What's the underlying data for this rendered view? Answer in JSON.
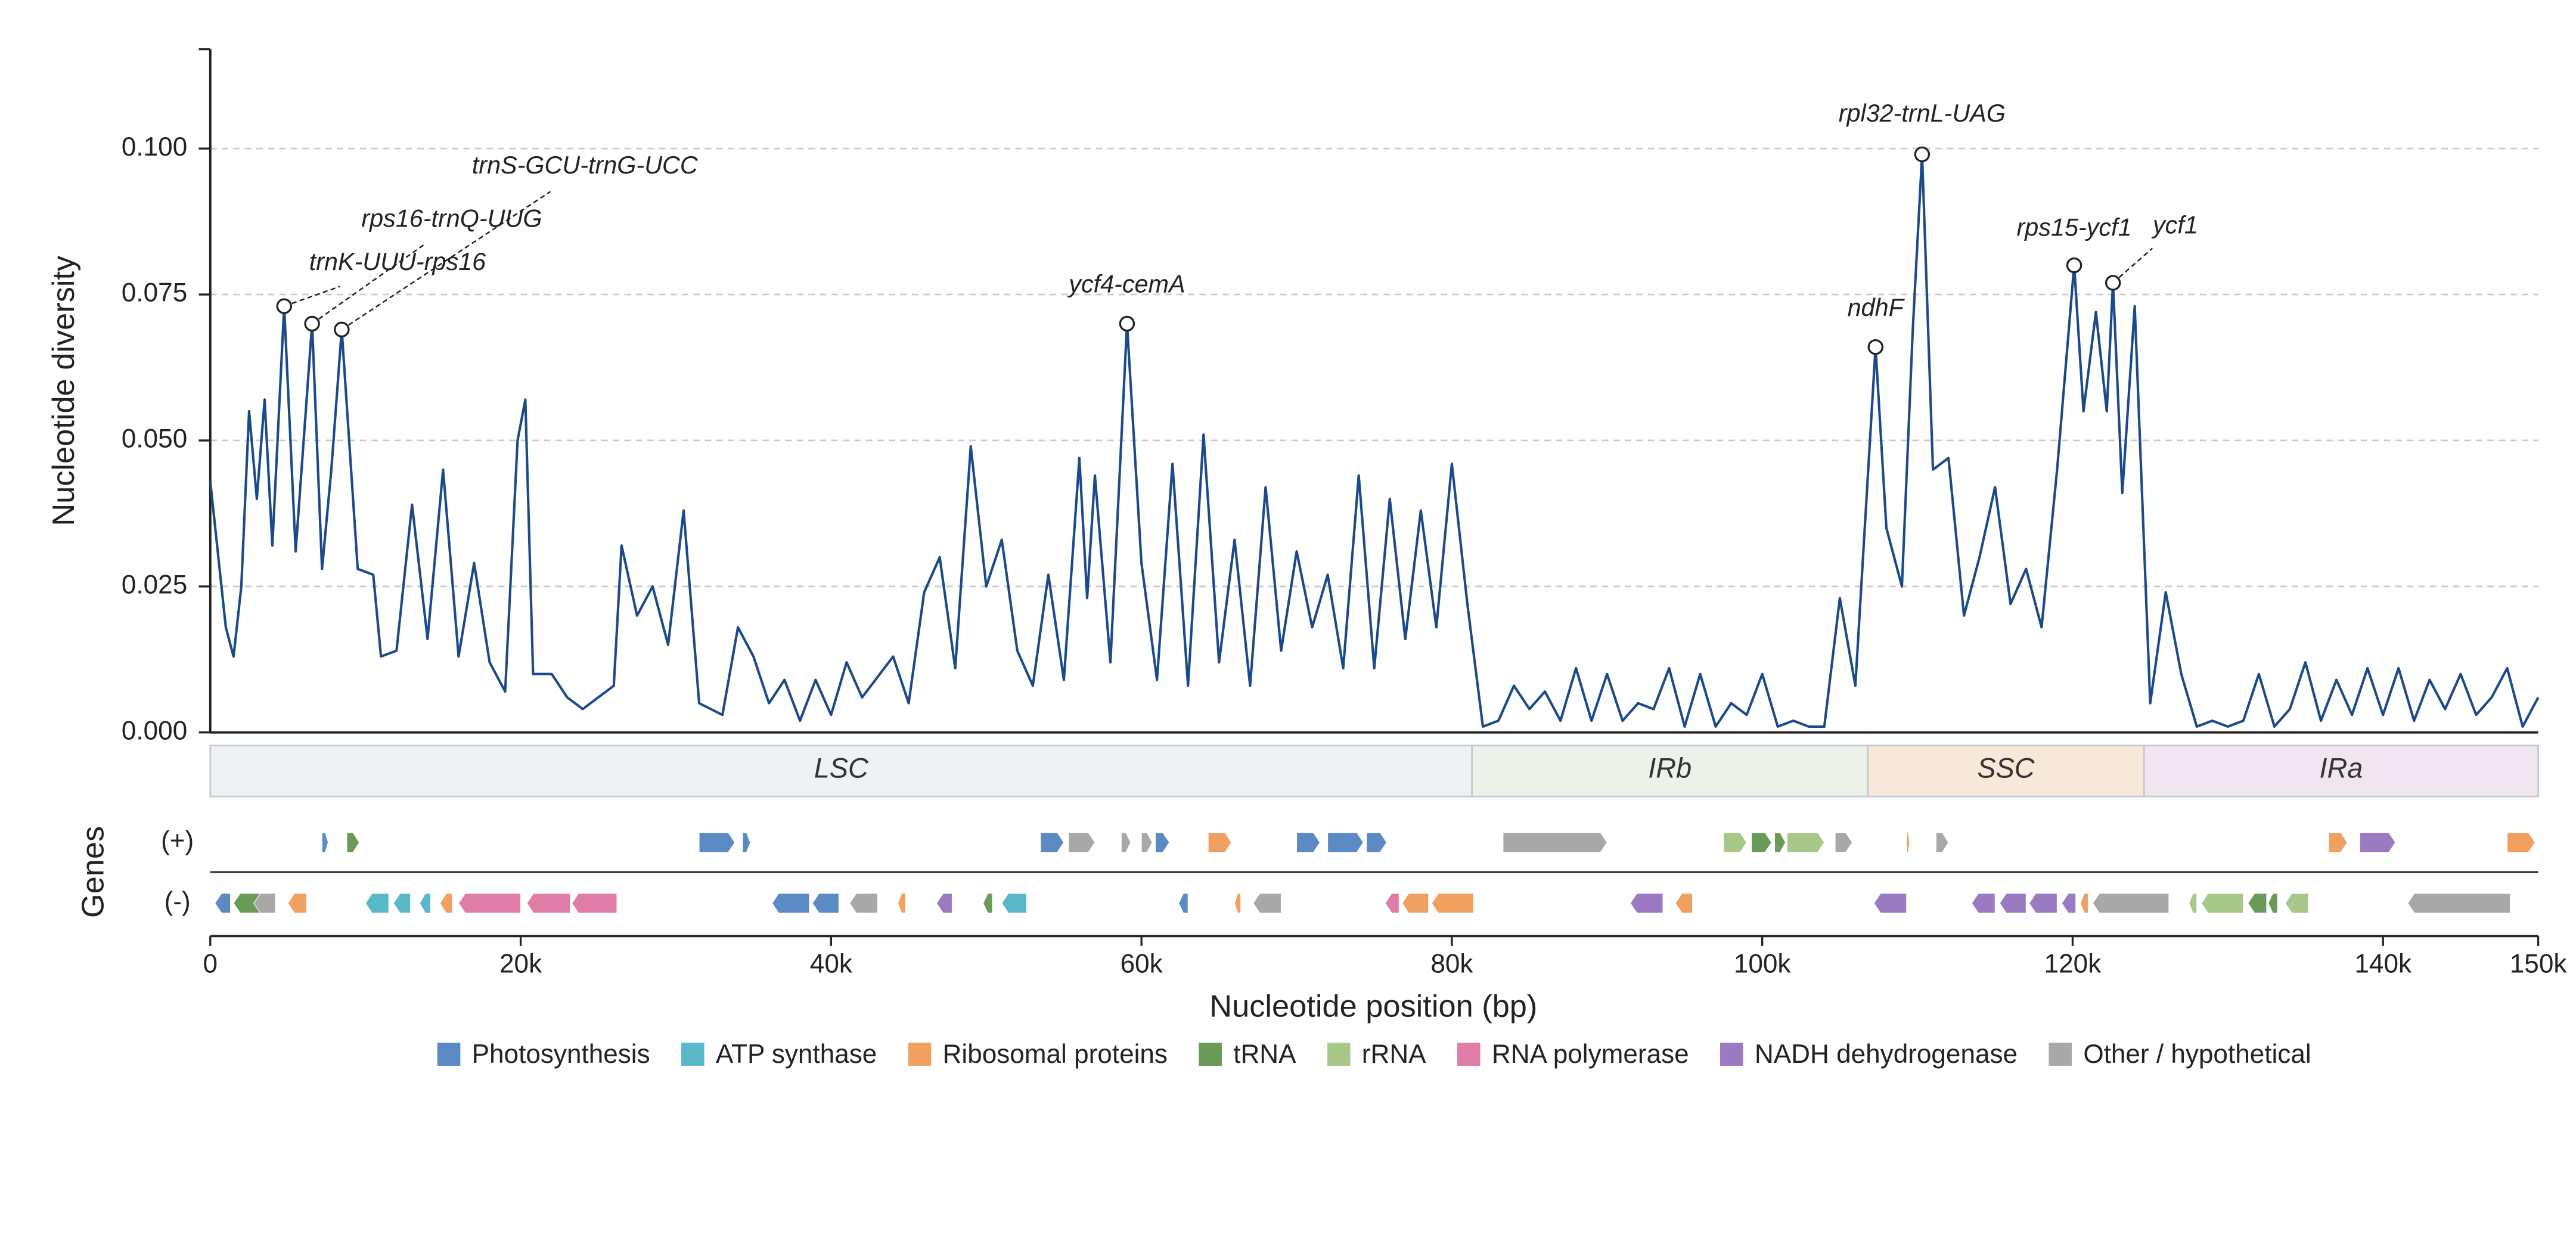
{
  "chart_data": {
    "type": "line",
    "ylabel": "Nucleotide diversity",
    "xlabel": "Nucleotide position (bp)",
    "color": "#1a4a8a",
    "grid": true,
    "xlim": [
      0,
      150000
    ],
    "ylim": [
      0,
      0.117
    ],
    "xticks": [
      0,
      {
        "value": 20000,
        "label": "20k"
      },
      {
        "value": 40000,
        "label": "40k"
      },
      {
        "value": 60000,
        "label": "60k"
      },
      {
        "value": 80000,
        "label": "80k"
      },
      {
        "value": 100000,
        "label": "100k"
      },
      {
        "value": 120000,
        "label": "120k"
      },
      {
        "value": 140000,
        "label": "140k"
      },
      {
        "value": 150000,
        "label": "150k"
      }
    ],
    "yticks": [
      {
        "value": 0,
        "label": "0.000"
      },
      0.025,
      {
        "value": 0.05,
        "label": "0.050"
      },
      0.075,
      {
        "value": 0.1,
        "label": "0.100"
      }
    ],
    "x": [
      0,
      1000,
      1500,
      2000,
      2500,
      3000,
      3500,
      4000,
      4760,
      5500,
      6560,
      7200,
      7800,
      8470,
      9500,
      10500,
      11000,
      12000,
      13000,
      14000,
      15000,
      16000,
      17000,
      18000,
      19000,
      19800,
      20300,
      20800,
      22000,
      23000,
      24000,
      26000,
      26500,
      27500,
      28500,
      29500,
      30500,
      31500,
      33000,
      34000,
      35000,
      36000,
      37000,
      38000,
      39000,
      40000,
      41000,
      42000,
      44000,
      45000,
      46000,
      47000,
      48000,
      49000,
      50000,
      51000,
      52000,
      53000,
      54000,
      55000,
      56000,
      56500,
      57000,
      58000,
      59070,
      60000,
      61000,
      62000,
      63000,
      64000,
      65000,
      66000,
      67000,
      68000,
      69000,
      70000,
      71000,
      72000,
      73000,
      74000,
      75000,
      76000,
      77000,
      78000,
      79000,
      80000,
      81000,
      82000,
      83000,
      84000,
      85000,
      86000,
      87000,
      88000,
      89000,
      90000,
      91000,
      92000,
      93000,
      94000,
      95000,
      96000,
      97000,
      98000,
      99000,
      100000,
      101000,
      102000,
      103000,
      104000,
      105000,
      106000,
      107300,
      108000,
      109000,
      109700,
      110300,
      111000,
      112000,
      113000,
      114000,
      115000,
      116000,
      117000,
      118000,
      119000,
      120100,
      120700,
      121500,
      122200,
      122600,
      123200,
      124000,
      125000,
      126000,
      127000,
      128000,
      129000,
      130000,
      131000,
      132000,
      133000,
      134000,
      135000,
      136000,
      137000,
      138000,
      139000,
      140000,
      141000,
      142000,
      143000,
      144000,
      145000,
      146000,
      147000,
      148000,
      149000,
      150000
    ],
    "values": [
      0.043,
      0.018,
      0.013,
      0.025,
      0.055,
      0.04,
      0.057,
      0.032,
      0.073,
      0.031,
      0.07,
      0.028,
      0.045,
      0.069,
      0.028,
      0.027,
      0.013,
      0.014,
      0.039,
      0.016,
      0.045,
      0.013,
      0.029,
      0.012,
      0.007,
      0.05,
      0.057,
      0.01,
      0.01,
      0.006,
      0.004,
      0.008,
      0.032,
      0.02,
      0.025,
      0.015,
      0.038,
      0.005,
      0.003,
      0.018,
      0.013,
      0.005,
      0.009,
      0.002,
      0.009,
      0.003,
      0.012,
      0.006,
      0.013,
      0.005,
      0.024,
      0.03,
      0.011,
      0.049,
      0.025,
      0.033,
      0.014,
      0.008,
      0.027,
      0.009,
      0.047,
      0.023,
      0.044,
      0.012,
      0.07,
      0.029,
      0.009,
      0.046,
      0.008,
      0.051,
      0.012,
      0.033,
      0.008,
      0.042,
      0.014,
      0.031,
      0.018,
      0.027,
      0.011,
      0.044,
      0.011,
      0.04,
      0.016,
      0.038,
      0.018,
      0.046,
      0.022,
      0.001,
      0.002,
      0.008,
      0.004,
      0.007,
      0.002,
      0.011,
      0.002,
      0.01,
      0.002,
      0.005,
      0.004,
      0.011,
      0.001,
      0.01,
      0.001,
      0.005,
      0.003,
      0.01,
      0.001,
      0.002,
      0.001,
      0.001,
      0.023,
      0.008,
      0.066,
      0.035,
      0.025,
      0.069,
      0.099,
      0.045,
      0.047,
      0.02,
      0.03,
      0.042,
      0.022,
      0.028,
      0.018,
      0.045,
      0.08,
      0.055,
      0.072,
      0.055,
      0.077,
      0.041,
      0.073,
      0.005,
      0.024,
      0.01,
      0.001,
      0.002,
      0.001,
      0.002,
      0.01,
      0.001,
      0.004,
      0.012,
      0.002,
      0.009,
      0.003,
      0.011,
      0.003,
      0.011,
      0.002,
      0.009,
      0.004,
      0.01,
      0.003,
      0.006,
      0.011,
      0.001,
      0.006
    ],
    "annotations": [
      {
        "label": "trnK-UUU-rps16",
        "x": 4760,
        "y": 0.073
      },
      {
        "label": "rps16-trnQ-UUG",
        "x": 6560,
        "y": 0.07
      },
      {
        "label": "trnS-GCU-trnG-UCC",
        "x": 8470,
        "y": 0.069
      },
      {
        "label": "ycf4-cemA",
        "x": 59070,
        "y": 0.07
      },
      {
        "label": "ndhF",
        "x": 107300,
        "y": 0.066
      },
      {
        "label": "rpl32-trnL-UAG",
        "x": 110300,
        "y": 0.099
      },
      {
        "label": "rps15-ycf1",
        "x": 120100,
        "y": 0.08
      },
      {
        "label": "ycf1",
        "x": 122600,
        "y": 0.077
      }
    ],
    "regions": [
      {
        "label": "LSC",
        "start": 0,
        "end": 81300,
        "color": "#eef2f5"
      },
      {
        "label": "IRb",
        "start": 81300,
        "end": 106800,
        "color": "#ecf1ea"
      },
      {
        "label": "SSC",
        "start": 106800,
        "end": 124600,
        "color": "#f8e8da"
      },
      {
        "label": "IRa",
        "start": 124600,
        "end": 150000,
        "color": "#f0e6f0"
      }
    ],
    "genes_label": "Genes",
    "tracks": [
      {
        "label": "(+)",
        "genes": [
          {
            "start": 7200,
            "end": 7600,
            "category": 0
          },
          {
            "start": 8800,
            "end": 9600,
            "category": 3
          },
          {
            "start": 31500,
            "end": 33800,
            "category": 0
          },
          {
            "start": 34300,
            "end": 34800,
            "category": 0
          },
          {
            "start": 53500,
            "end": 55000,
            "category": 0
          },
          {
            "start": 55300,
            "end": 57000,
            "category": 7
          },
          {
            "start": 58700,
            "end": 59300,
            "category": 7
          },
          {
            "start": 60000,
            "end": 60700,
            "category": 7
          },
          {
            "start": 60900,
            "end": 61800,
            "category": 0
          },
          {
            "start": 64300,
            "end": 65800,
            "category": 2
          },
          {
            "start": 70000,
            "end": 71500,
            "category": 0
          },
          {
            "start": 72000,
            "end": 74300,
            "category": 0
          },
          {
            "start": 74500,
            "end": 75800,
            "category": 0
          },
          {
            "start": 83300,
            "end": 90000,
            "category": 7
          },
          {
            "start": 97500,
            "end": 99000,
            "category": 4
          },
          {
            "start": 99300,
            "end": 100600,
            "category": 3
          },
          {
            "start": 100800,
            "end": 101500,
            "category": 3
          },
          {
            "start": 101600,
            "end": 104000,
            "category": 4
          },
          {
            "start": 104700,
            "end": 105800,
            "category": 7
          },
          {
            "start": 109300,
            "end": 109500,
            "category": 2
          },
          {
            "start": 111200,
            "end": 112000,
            "category": 7
          },
          {
            "start": 136500,
            "end": 137700,
            "category": 2
          },
          {
            "start": 138500,
            "end": 140800,
            "category": 6
          },
          {
            "start": 148000,
            "end": 149800,
            "category": 2
          }
        ]
      },
      {
        "label": "(-)",
        "genes": [
          {
            "start": 300,
            "end": 1300,
            "category": 0
          },
          {
            "start": 1500,
            "end": 3200,
            "category": 3
          },
          {
            "start": 2800,
            "end": 4200,
            "category": 7
          },
          {
            "start": 5000,
            "end": 6200,
            "category": 2
          },
          {
            "start": 10000,
            "end": 11500,
            "category": 1
          },
          {
            "start": 11800,
            "end": 12900,
            "category": 1
          },
          {
            "start": 13500,
            "end": 14200,
            "category": 1
          },
          {
            "start": 14800,
            "end": 15600,
            "category": 2
          },
          {
            "start": 16000,
            "end": 20000,
            "category": 5
          },
          {
            "start": 20400,
            "end": 23200,
            "category": 5
          },
          {
            "start": 23300,
            "end": 26200,
            "category": 5
          },
          {
            "start": 36200,
            "end": 38600,
            "category": 0
          },
          {
            "start": 38800,
            "end": 40500,
            "category": 0
          },
          {
            "start": 41200,
            "end": 43000,
            "category": 7
          },
          {
            "start": 44300,
            "end": 44800,
            "category": 2
          },
          {
            "start": 46800,
            "end": 47800,
            "category": 6
          },
          {
            "start": 49800,
            "end": 50400,
            "category": 3
          },
          {
            "start": 51000,
            "end": 52600,
            "category": 1
          },
          {
            "start": 62400,
            "end": 63000,
            "category": 0
          },
          {
            "start": 66000,
            "end": 66400,
            "category": 2
          },
          {
            "start": 67200,
            "end": 69000,
            "category": 7
          },
          {
            "start": 75700,
            "end": 76600,
            "category": 5
          },
          {
            "start": 76800,
            "end": 78500,
            "category": 2
          },
          {
            "start": 78700,
            "end": 81400,
            "category": 2
          },
          {
            "start": 91500,
            "end": 93600,
            "category": 6
          },
          {
            "start": 94400,
            "end": 95500,
            "category": 2
          },
          {
            "start": 107200,
            "end": 109300,
            "category": 6
          },
          {
            "start": 113500,
            "end": 115000,
            "category": 6
          },
          {
            "start": 115300,
            "end": 117000,
            "category": 6
          },
          {
            "start": 117200,
            "end": 119000,
            "category": 6
          },
          {
            "start": 119300,
            "end": 120200,
            "category": 6
          },
          {
            "start": 120500,
            "end": 121000,
            "category": 2
          },
          {
            "start": 121300,
            "end": 126200,
            "category": 7
          },
          {
            "start": 127500,
            "end": 128000,
            "category": 4
          },
          {
            "start": 128300,
            "end": 131000,
            "category": 4
          },
          {
            "start": 131300,
            "end": 132500,
            "category": 3
          },
          {
            "start": 132600,
            "end": 133200,
            "category": 3
          },
          {
            "start": 133700,
            "end": 135200,
            "category": 4
          },
          {
            "start": 141600,
            "end": 148200,
            "category": 7
          }
        ]
      }
    ],
    "legend": [
      {
        "name": "Photosynthesis",
        "color": "#5b8ac4"
      },
      {
        "name": "ATP synthase",
        "color": "#5bb8c6"
      },
      {
        "name": "Ribosomal proteins",
        "color": "#f0a060"
      },
      {
        "name": "tRNA",
        "color": "#6a9a58"
      },
      {
        "name": "rRNA",
        "color": "#a8c88a"
      },
      {
        "name": "RNA polymerase",
        "color": "#e07ca8"
      },
      {
        "name": "NADH dehydrogenase",
        "color": "#9a7ac0"
      },
      {
        "name": "Other / hypothetical",
        "color": "#a8a8a8"
      }
    ]
  }
}
